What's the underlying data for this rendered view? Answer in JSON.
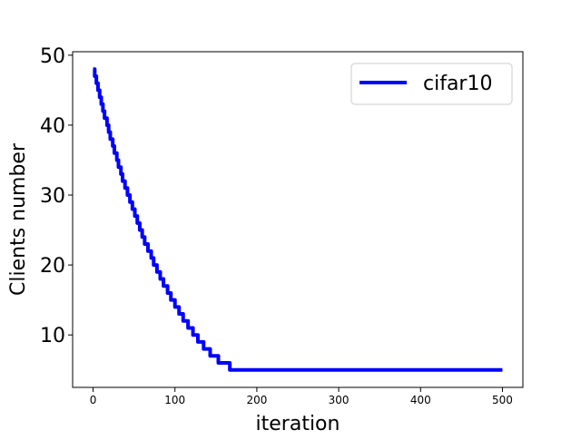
{
  "chart_data": {
    "type": "line",
    "title": "",
    "xlabel": "iteration",
    "ylabel": "Clients number",
    "xlim": [
      -25,
      525
    ],
    "ylim": [
      2.5,
      50.5
    ],
    "xticks": [
      0,
      100,
      200,
      300,
      400,
      500
    ],
    "yticks": [
      10,
      20,
      30,
      40,
      50
    ],
    "grid": false,
    "legend_position": "upper right",
    "series": [
      {
        "name": "cifar10",
        "color": "#0000ff",
        "step": true,
        "points": [
          [
            0,
            48
          ],
          [
            2,
            47
          ],
          [
            4,
            46
          ],
          [
            6,
            45
          ],
          [
            8,
            44
          ],
          [
            10,
            43
          ],
          [
            12,
            42
          ],
          [
            14,
            41
          ],
          [
            17,
            40
          ],
          [
            19,
            39
          ],
          [
            21,
            38
          ],
          [
            24,
            37
          ],
          [
            26,
            36
          ],
          [
            29,
            35
          ],
          [
            31,
            34
          ],
          [
            34,
            33
          ],
          [
            36,
            32
          ],
          [
            39,
            31
          ],
          [
            42,
            30
          ],
          [
            45,
            29
          ],
          [
            48,
            28
          ],
          [
            51,
            27
          ],
          [
            54,
            26
          ],
          [
            57,
            25
          ],
          [
            60,
            24
          ],
          [
            63,
            23
          ],
          [
            67,
            22
          ],
          [
            71,
            21
          ],
          [
            74,
            20
          ],
          [
            78,
            19
          ],
          [
            82,
            18
          ],
          [
            86,
            17
          ],
          [
            91,
            16
          ],
          [
            95,
            15
          ],
          [
            100,
            14
          ],
          [
            105,
            13
          ],
          [
            110,
            12
          ],
          [
            116,
            11
          ],
          [
            122,
            10
          ],
          [
            128,
            9
          ],
          [
            135,
            8
          ],
          [
            143,
            7
          ],
          [
            153,
            6
          ],
          [
            167,
            5
          ],
          [
            500,
            5
          ]
        ]
      }
    ]
  }
}
